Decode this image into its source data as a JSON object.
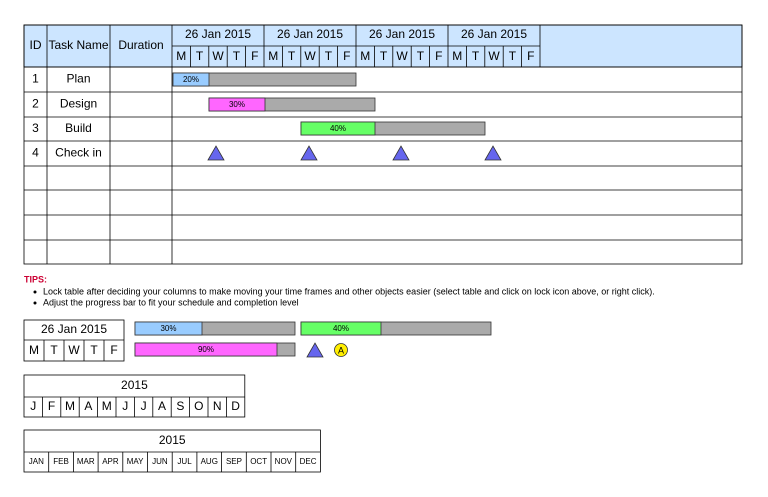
{
  "table": {
    "headers": {
      "id": "ID",
      "task_name": "Task Name",
      "duration": "Duration",
      "weeks": [
        "26 Jan 2015",
        "26 Jan 2015",
        "26 Jan 2015",
        "26 Jan 2015"
      ],
      "days": [
        "M",
        "T",
        "W",
        "T",
        "F"
      ]
    },
    "rows": [
      [
        "1",
        "Plan"
      ],
      [
        "2",
        "Design"
      ],
      [
        "3",
        "Build"
      ],
      [
        "4",
        "Check in"
      ]
    ],
    "bars": [
      {
        "progress": "20%"
      },
      {
        "progress": "30%"
      },
      {
        "progress": "40%"
      }
    ]
  },
  "tips": {
    "title": "TIPS:",
    "items": [
      "Lock table after deciding your columns to make moving your time frames and other objects easier (select table and click on lock icon above, or right click).",
      "Adjust the progress bar to fit your schedule and completion level"
    ]
  },
  "legend": {
    "week": "26 Jan 2015",
    "days": [
      "M",
      "T",
      "W",
      "T",
      "F"
    ],
    "bars": [
      "30%",
      "40%",
      "90%"
    ],
    "milestone_letter": "A"
  },
  "year_calendar": {
    "year": "2015",
    "months": [
      "J",
      "F",
      "M",
      "A",
      "M",
      "J",
      "J",
      "A",
      "S",
      "O",
      "N",
      "D"
    ]
  },
  "year_calendar_abbr": {
    "year": "2015",
    "months": [
      "JAN",
      "FEB",
      "MAR",
      "APR",
      "MAY",
      "JUN",
      "JUL",
      "AUG",
      "SEP",
      "OCT",
      "NOV",
      "DEC"
    ]
  }
}
